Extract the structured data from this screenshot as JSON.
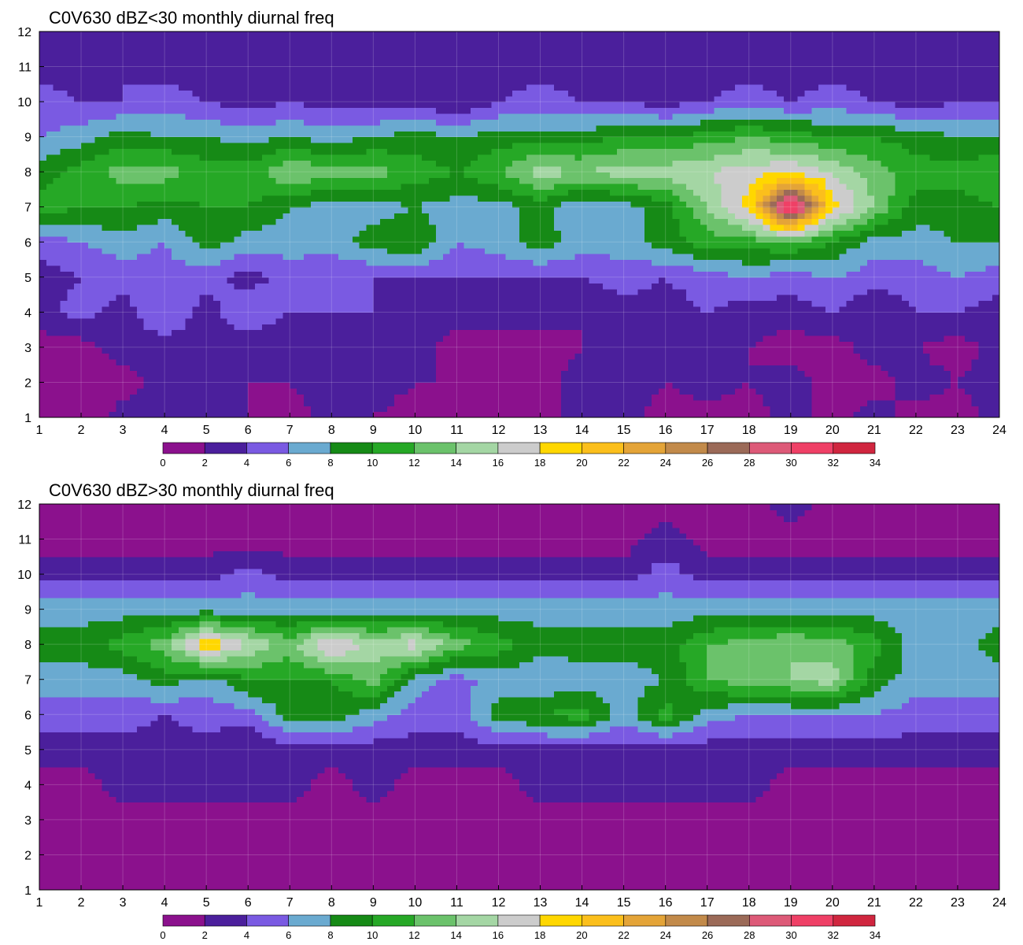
{
  "chart_data": [
    {
      "type": "heatmap",
      "title": "C0V630 dBZ<30 monthly diurnal freq",
      "x": [
        1,
        2,
        3,
        4,
        5,
        6,
        7,
        8,
        9,
        10,
        11,
        12,
        13,
        14,
        15,
        16,
        17,
        18,
        19,
        20,
        21,
        22,
        23,
        24
      ],
      "y": [
        1,
        2,
        3,
        4,
        5,
        6,
        7,
        8,
        9,
        10,
        11,
        12
      ],
      "xlim": [
        1,
        24
      ],
      "ylim": [
        1,
        12
      ],
      "grid": true,
      "levels": [
        0,
        2,
        4,
        6,
        8,
        10,
        12,
        14,
        16,
        18,
        20,
        22,
        24,
        26,
        28,
        30,
        32,
        34
      ],
      "colors": [
        "#8b118d",
        "#4b1f9c",
        "#7a5ae2",
        "#6aaad0",
        "#168a16",
        "#26a826",
        "#6bc26b",
        "#a4d6a4",
        "#cccccc",
        "#ffd700",
        "#fbbf1c",
        "#e4a438",
        "#c28a4a",
        "#9b6a58",
        "#dd5a78",
        "#ef4066",
        "#d0263f"
      ],
      "values": [
        [
          1,
          0,
          3,
          3,
          3,
          2,
          1,
          3,
          2,
          1,
          1,
          1,
          1,
          3,
          3,
          1,
          1,
          1,
          3,
          1,
          3,
          1,
          1,
          3
        ],
        [
          1,
          1,
          1,
          3,
          3,
          2,
          2,
          3,
          3,
          2,
          2,
          2,
          1,
          3,
          3,
          2,
          3,
          2,
          3,
          1,
          1,
          3,
          2,
          3
        ],
        [
          1,
          1,
          3,
          3,
          3,
          2,
          2,
          3,
          2,
          3,
          1,
          2,
          1,
          2,
          3,
          2,
          3,
          2,
          1,
          1,
          3,
          2,
          1,
          3
        ],
        [
          3,
          5,
          3,
          6,
          3,
          6,
          4,
          4,
          4,
          3,
          3,
          2,
          3,
          2,
          3,
          3,
          4,
          3,
          3,
          4,
          2,
          4,
          4,
          3
        ],
        [
          3,
          4,
          5,
          5,
          5,
          3,
          5,
          4,
          4,
          4,
          4,
          4,
          4,
          4,
          5,
          4,
          5,
          6,
          5,
          6,
          5,
          5,
          6,
          5
        ],
        [
          5,
          6,
          7,
          6,
          9,
          7,
          7,
          7,
          9,
          10,
          6,
          7,
          9,
          7,
          7,
          9,
          11,
          11,
          12,
          10,
          7,
          7,
          8,
          8
        ],
        [
          11,
          10,
          10,
          9,
          10,
          10,
          8,
          7,
          7,
          8,
          7,
          7,
          9,
          6,
          7,
          9,
          14,
          19,
          33,
          19,
          14,
          9,
          9,
          10
        ],
        [
          9,
          11,
          13,
          13,
          11,
          11,
          14,
          13,
          13,
          11,
          10,
          12,
          15,
          14,
          15,
          15,
          16,
          17,
          18,
          16,
          13,
          11,
          11,
          12
        ],
        [
          6,
          7,
          9,
          8,
          8,
          7,
          8,
          7,
          8,
          9,
          8,
          9,
          9,
          9,
          10,
          10,
          11,
          12,
          11,
          10,
          10,
          9,
          8,
          8
        ],
        [
          5,
          4,
          4,
          5,
          4,
          3,
          4,
          3,
          3,
          3,
          2,
          4,
          5,
          4,
          4,
          3,
          4,
          5,
          4,
          5,
          4,
          3,
          4,
          4
        ],
        [
          3,
          3,
          4,
          3,
          3,
          3,
          3,
          2,
          3,
          3,
          2,
          3,
          3,
          3,
          4,
          3,
          3,
          3,
          3,
          3,
          3,
          2,
          3,
          3
        ],
        [
          3,
          3,
          3,
          3,
          2,
          3,
          3,
          3,
          3,
          2,
          3,
          3,
          3,
          3,
          3,
          3,
          3,
          3,
          3,
          3,
          3,
          2,
          3,
          3
        ]
      ]
    },
    {
      "type": "heatmap",
      "title": "C0V630 dBZ>30 monthly diurnal freq",
      "x": [
        1,
        2,
        3,
        4,
        5,
        6,
        7,
        8,
        9,
        10,
        11,
        12,
        13,
        14,
        15,
        16,
        17,
        18,
        19,
        20,
        21,
        22,
        23,
        24
      ],
      "y": [
        1,
        2,
        3,
        4,
        5,
        6,
        7,
        8,
        9,
        10,
        11,
        12
      ],
      "xlim": [
        1,
        24
      ],
      "ylim": [
        1,
        12
      ],
      "grid": true,
      "levels": [
        0,
        2,
        4,
        6,
        8,
        10,
        12,
        14,
        16,
        18,
        20,
        22,
        24,
        26,
        28,
        30,
        32,
        34
      ],
      "colors": [
        "#8b118d",
        "#4b1f9c",
        "#7a5ae2",
        "#6aaad0",
        "#168a16",
        "#26a826",
        "#6bc26b",
        "#a4d6a4",
        "#cccccc",
        "#ffd700",
        "#fbbf1c",
        "#e4a438",
        "#c28a4a",
        "#9b6a58",
        "#dd5a78",
        "#ef4066",
        "#d0263f"
      ],
      "values": [
        [
          1,
          1,
          1,
          1,
          1,
          1,
          1,
          1,
          1,
          1,
          1,
          1,
          1,
          1,
          1,
          1,
          1,
          1,
          1,
          1,
          1,
          1,
          1,
          1
        ],
        [
          1,
          1,
          1,
          1,
          1,
          1,
          1,
          1,
          1,
          1,
          1,
          1,
          1,
          1,
          1,
          1,
          1,
          1,
          1,
          1,
          1,
          1,
          1,
          1
        ],
        [
          1,
          1,
          1,
          1,
          1,
          1,
          1,
          1,
          1,
          1,
          1,
          1,
          1,
          1,
          1,
          1,
          1,
          1,
          1,
          1,
          1,
          1,
          1,
          1
        ],
        [
          1,
          1,
          3,
          3,
          3,
          3,
          3,
          1,
          3,
          1,
          1,
          1,
          3,
          3,
          3,
          3,
          3,
          3,
          1,
          1,
          1,
          1,
          1,
          1
        ],
        [
          3,
          3,
          3,
          3,
          3,
          2,
          3,
          3,
          3,
          3,
          3,
          3,
          3,
          3,
          3,
          3,
          3,
          3,
          3,
          3,
          3,
          3,
          3,
          3
        ],
        [
          5,
          5,
          5,
          4,
          5,
          5,
          9,
          9,
          7,
          5,
          5,
          9,
          10,
          11,
          7,
          11,
          7,
          6,
          6,
          6,
          6,
          5,
          5,
          5
        ],
        [
          7,
          7,
          7,
          9,
          7,
          10,
          10,
          10,
          13,
          7,
          5,
          7,
          6,
          7,
          7,
          8,
          12,
          13,
          14,
          15,
          9,
          7,
          7,
          7
        ],
        [
          9,
          9,
          11,
          13,
          20,
          16,
          13,
          19,
          15,
          17,
          13,
          11,
          9,
          9,
          9,
          9,
          12,
          13,
          14,
          13,
          11,
          7,
          7,
          9
        ],
        [
          7,
          7,
          7,
          7,
          7,
          7,
          7,
          7,
          7,
          7,
          7,
          7,
          7,
          7,
          7,
          7,
          7,
          7,
          7,
          7,
          7,
          7,
          7,
          7
        ],
        [
          3,
          3,
          3,
          3,
          3,
          5,
          3,
          3,
          3,
          3,
          3,
          3,
          3,
          3,
          3,
          5,
          3,
          3,
          3,
          3,
          3,
          3,
          3,
          3
        ],
        [
          1,
          1,
          1,
          1,
          1,
          1,
          1,
          1,
          1,
          1,
          1,
          1,
          1,
          1,
          1,
          3,
          1,
          1,
          1,
          1,
          1,
          1,
          1,
          1
        ],
        [
          1,
          1,
          1,
          1,
          1,
          1,
          1,
          1,
          1,
          1,
          1,
          1,
          1,
          1,
          1,
          1,
          1,
          1,
          3,
          1,
          1,
          1,
          1,
          1
        ]
      ]
    }
  ]
}
